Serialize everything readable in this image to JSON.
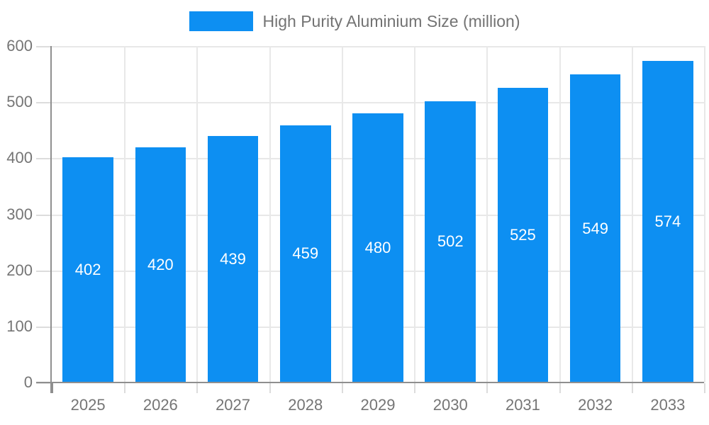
{
  "legend": {
    "label": "High Purity Aluminium Size (million)"
  },
  "colors": {
    "bar": "#0d8ff2",
    "axis": "#8f8f8f",
    "grid": "#e8e8e8",
    "tick": "#dcdcdc",
    "axis_label": "#757575",
    "legend_text": "#737373",
    "value_label": "#ffffff"
  },
  "chart_data": {
    "type": "bar",
    "title": "High Purity Aluminium Size (million)",
    "categories": [
      "2025",
      "2026",
      "2027",
      "2028",
      "2029",
      "2030",
      "2031",
      "2032",
      "2033"
    ],
    "values": [
      402,
      420,
      439,
      459,
      480,
      502,
      525,
      549,
      574
    ],
    "xlabel": "",
    "ylabel": "",
    "ylim": [
      0,
      600
    ],
    "yticks": [
      0,
      100,
      200,
      300,
      400,
      500,
      600
    ],
    "grid": true,
    "legend_position": "top-center",
    "value_label_position": "inside-middle",
    "bar_width_fraction": 0.7
  }
}
